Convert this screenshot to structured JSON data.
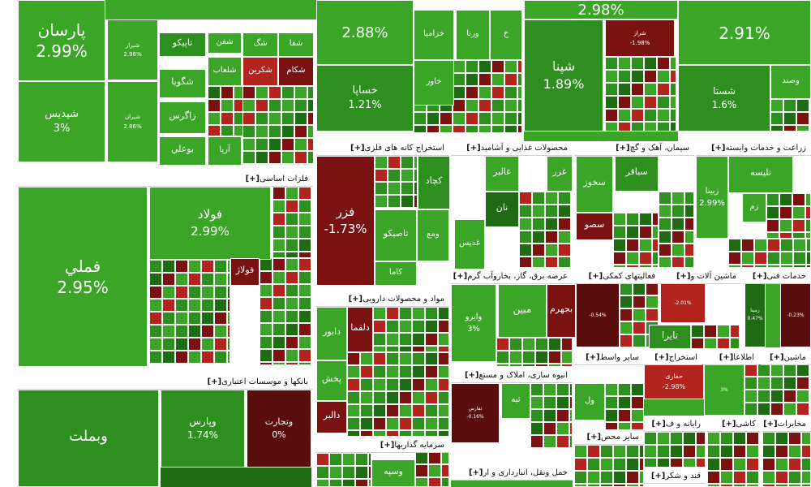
{
  "colors": {
    "pos_bright": "#3aa526",
    "pos_mid": "#2d8f1e",
    "pos_dark": "#1f6b14",
    "neg_bright": "#b3241f",
    "neg_dark": "#7a1212",
    "neg_deep": "#5a0d0d",
    "dark_green_deep": "#104b0e",
    "border": "#ffffff",
    "header_bg": "#ffffff"
  },
  "expand_label": "[+]",
  "sectors": [
    {
      "id": "s-metals",
      "title": "فلزات اساسی"
    },
    {
      "id": "s-banks",
      "title": "بانکها و موسسات اعتباری"
    },
    {
      "id": "s-mining",
      "title": "استخراج کانه های فلزی"
    },
    {
      "id": "s-food",
      "title": "محصولات غذایی و آشامید"
    },
    {
      "id": "s-cement",
      "title": "سیمان، آهک و گچ"
    },
    {
      "id": "s-agri",
      "title": "زراعت و خدمات وابسته"
    },
    {
      "id": "s-pharma",
      "title": "مواد و محصولات دارویی"
    },
    {
      "id": "s-power",
      "title": "عرضه برق، گاز، بخاروآب گرم"
    },
    {
      "id": "s-aux",
      "title": "فعالیتهای کمکی"
    },
    {
      "id": "s-machinery",
      "title": "ماشین آلات و"
    },
    {
      "id": "s-tech",
      "title": "خدمات فنی"
    },
    {
      "id": "s-mass",
      "title": "انبوه سازی، املاک و مستغ"
    },
    {
      "id": "s-other-inter",
      "title": "سایر واسط"
    },
    {
      "id": "s-extract",
      "title": "استخراج"
    },
    {
      "id": "s-info",
      "title": "اطلاعا"
    },
    {
      "id": "s-elec",
      "title": "ماشین"
    },
    {
      "id": "s-invest",
      "title": "سرمایه گذاریها"
    },
    {
      "id": "s-other-mining",
      "title": "سایر محص"
    },
    {
      "id": "s-comp",
      "title": "رایانه و ف"
    },
    {
      "id": "s-tile",
      "title": "کاشی"
    },
    {
      "id": "s-telecom",
      "title": "مخابرات"
    },
    {
      "id": "s-transport",
      "title": "حمل ونقل، انبارداری و ار"
    },
    {
      "id": "s-sugar",
      "title": "قند و شکر"
    }
  ],
  "tiles": [
    {
      "id": "t01",
      "name": "پارسان",
      "pct": "2.99%",
      "color": "pos_bright"
    },
    {
      "id": "t02",
      "name": "",
      "pct": "2.88%",
      "color": "pos_bright"
    },
    {
      "id": "t03",
      "name": "",
      "pct": "2.98%",
      "color": "pos_bright"
    },
    {
      "id": "t04",
      "name": "",
      "pct": "2.91%",
      "color": "pos_bright"
    },
    {
      "id": "t05",
      "name": "شیراز",
      "pct": "2.98%",
      "color": "pos_bright"
    },
    {
      "id": "t06",
      "name": "تاپیکو",
      "pct": "",
      "color": "pos_mid"
    },
    {
      "id": "t07",
      "name": "شفن",
      "pct": "",
      "color": "pos_bright"
    },
    {
      "id": "t08",
      "name": "شگ",
      "pct": "",
      "color": "pos_bright"
    },
    {
      "id": "t09",
      "name": "شفا",
      "pct": "",
      "color": "pos_bright"
    },
    {
      "id": "t10",
      "name": "شگویا",
      "pct": "",
      "color": "pos_bright"
    },
    {
      "id": "t11",
      "name": "شلعاب",
      "pct": "",
      "color": "pos_bright"
    },
    {
      "id": "t12",
      "name": "شکربن",
      "pct": "",
      "color": "neg_bright"
    },
    {
      "id": "t13",
      "name": "شکام",
      "pct": "",
      "color": "neg_dark"
    },
    {
      "id": "t14",
      "name": "شیران",
      "pct": "2.86%",
      "color": "pos_bright"
    },
    {
      "id": "t15",
      "name": "زاگرس",
      "pct": "",
      "color": "pos_bright"
    },
    {
      "id": "t16",
      "name": "بوعلي",
      "pct": "",
      "color": "pos_bright"
    },
    {
      "id": "t17",
      "name": "آریا",
      "pct": "",
      "color": "pos_bright"
    },
    {
      "id": "t18",
      "name": "شپدیس",
      "pct": "3%",
      "color": "pos_bright"
    },
    {
      "id": "t19",
      "name": "خساپا",
      "pct": "1.21%",
      "color": "pos_mid"
    },
    {
      "id": "t20",
      "name": "خزامیا",
      "pct": "",
      "color": "pos_bright"
    },
    {
      "id": "t21",
      "name": "ورنا",
      "pct": "",
      "color": "pos_bright"
    },
    {
      "id": "t22",
      "name": "خ",
      "pct": "",
      "color": "pos_bright"
    },
    {
      "id": "t23",
      "name": "خاور",
      "pct": "",
      "color": "pos_bright"
    },
    {
      "id": "t24",
      "name": "شپنا",
      "pct": "1.89%",
      "color": "pos_mid"
    },
    {
      "id": "t25",
      "name": "شراز",
      "pct": "-1.98%",
      "color": "neg_dark"
    },
    {
      "id": "t26",
      "name": "شستا",
      "pct": "1.6%",
      "color": "pos_mid"
    },
    {
      "id": "t27",
      "name": "وصند",
      "pct": "",
      "color": "pos_bright"
    },
    {
      "id": "t28",
      "name": "فملي",
      "pct": "2.95%",
      "color": "pos_bright"
    },
    {
      "id": "t29",
      "name": "فولاد",
      "pct": "2.99%",
      "color": "pos_bright"
    },
    {
      "id": "t30",
      "name": "فولاژ",
      "pct": "",
      "color": "neg_dark"
    },
    {
      "id": "t31",
      "name": "فزر",
      "pct": "-1.73%",
      "color": "neg_dark"
    },
    {
      "id": "t32",
      "name": "کچاد",
      "pct": "",
      "color": "pos_mid"
    },
    {
      "id": "t33",
      "name": "تاصیکو",
      "pct": "",
      "color": "pos_bright"
    },
    {
      "id": "t34",
      "name": "ومع",
      "pct": "",
      "color": "pos_bright"
    },
    {
      "id": "t35",
      "name": "کاما",
      "pct": "",
      "color": "pos_bright"
    },
    {
      "id": "t36",
      "name": "غالبر",
      "pct": "",
      "color": "pos_bright"
    },
    {
      "id": "t37",
      "name": "غزر",
      "pct": "",
      "color": "pos_bright"
    },
    {
      "id": "t38",
      "name": "نان",
      "pct": "",
      "color": "pos_dark"
    },
    {
      "id": "t39",
      "name": "غدیس",
      "pct": "",
      "color": "pos_bright"
    },
    {
      "id": "t40",
      "name": "سباقر",
      "pct": "",
      "color": "pos_mid"
    },
    {
      "id": "t41",
      "name": "سخوز",
      "pct": "",
      "color": "pos_bright"
    },
    {
      "id": "t42",
      "name": "سصو",
      "pct": "",
      "color": "neg_dark"
    },
    {
      "id": "t43",
      "name": "تلیسه",
      "pct": "",
      "color": "pos_bright"
    },
    {
      "id": "t44",
      "name": "زبینا",
      "pct": "2.99%",
      "color": "pos_bright"
    },
    {
      "id": "t45",
      "name": "زم",
      "pct": "",
      "color": "pos_bright"
    },
    {
      "id": "t46",
      "name": "وبملت",
      "pct": "",
      "color": "pos_mid"
    },
    {
      "id": "t47",
      "name": "وپارس",
      "pct": "1.74%",
      "color": "pos_mid"
    },
    {
      "id": "t48",
      "name": "وتجارت",
      "pct": "0%",
      "color": "neg_deep"
    },
    {
      "id": "t49",
      "name": "دلقما",
      "pct": "",
      "color": "neg_dark"
    },
    {
      "id": "t50",
      "name": "دابور",
      "pct": "",
      "color": "pos_bright"
    },
    {
      "id": "t51",
      "name": "پخش",
      "pct": "",
      "color": "pos_bright"
    },
    {
      "id": "t52",
      "name": "دالبر",
      "pct": "",
      "color": "neg_dark"
    },
    {
      "id": "t53",
      "name": "وايرو",
      "pct": "3%",
      "color": "pos_bright"
    },
    {
      "id": "t54",
      "name": "مبين",
      "pct": "",
      "color": "pos_bright"
    },
    {
      "id": "t55",
      "name": "بجهرم",
      "pct": "",
      "color": "neg_dark"
    },
    {
      "id": "t56",
      "name": "تایرا",
      "pct": "",
      "color": "pos_mid"
    },
    {
      "id": "t57",
      "name": "وسپه",
      "pct": "",
      "color": "pos_bright"
    },
    {
      "id": "t58",
      "name": "حفاری",
      "pct": "-2.98%",
      "color": "neg_bright"
    },
    {
      "id": "t59",
      "name": "ثبه",
      "pct": "",
      "color": "pos_bright"
    },
    {
      "id": "t60",
      "name": "ثفارس",
      "pct": "-0.16%",
      "color": "neg_deep"
    },
    {
      "id": "t61",
      "name": "ول",
      "pct": "",
      "color": "pos_bright"
    },
    {
      "id": "t62",
      "name": "زمینا",
      "pct": "0.47%",
      "color": "pos_dark"
    },
    {
      "id": "t63",
      "name": "",
      "pct": "-0.54%",
      "color": "neg_deep"
    },
    {
      "id": "t64",
      "name": "",
      "pct": "-0.23%",
      "color": "neg_deep"
    },
    {
      "id": "t65",
      "name": "",
      "pct": "-2.01%",
      "color": "neg_bright"
    },
    {
      "id": "t66",
      "name": "",
      "pct": "3%",
      "color": "pos_bright"
    }
  ]
}
